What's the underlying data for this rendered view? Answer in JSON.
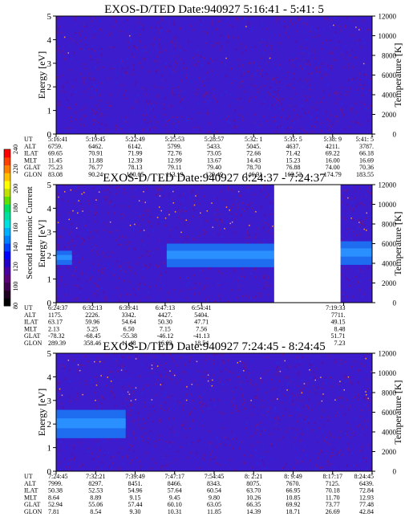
{
  "colorbar": {
    "label": "Second Harmonic Current",
    "ticks": [
      "80",
      "100",
      "120",
      "140",
      "160",
      "180",
      "200",
      "220",
      "240"
    ],
    "colors": [
      "#000000",
      "#200020",
      "#400050",
      "#5a0078",
      "#4a00a0",
      "#2200c8",
      "#0000ff",
      "#0040ff",
      "#0080ff",
      "#00b0ff",
      "#00e0e0",
      "#00e0a0",
      "#00e060",
      "#60e000",
      "#c0e000",
      "#ffff00",
      "#ffc000",
      "#ff8000",
      "#ff4000",
      "#ff0000"
    ]
  },
  "chart_data": [
    {
      "type": "heatmap",
      "title": "EXOS-D/TED   Date:940927  5:16:41 - 5:41: 5",
      "ylabel": "Energy [eV]",
      "y2label": "Temperature [K]",
      "ylim": [
        0,
        5
      ],
      "y2lim": [
        0,
        12000
      ],
      "yticks": [
        "0",
        "1",
        "2",
        "3",
        "4",
        "5"
      ],
      "y2ticks": [
        "0",
        "2000",
        "4000",
        "6000",
        "8000",
        "10000",
        "12000"
      ],
      "gap": null,
      "band": null,
      "table": {
        "labels": [
          "UT",
          "ALT",
          "ILAT",
          "MLT",
          "GLAT",
          "GLON"
        ],
        "columns": [
          [
            "5:16:41",
            "6759.",
            "69.65",
            "11.45",
            "75.23",
            "83.08"
          ],
          [
            "5:19:45",
            "6462.",
            "70.91",
            "11.88",
            "76.77",
            "90.24"
          ],
          [
            "5:22:49",
            "6142.",
            "71.99",
            "12.39",
            "78.13",
            "100.05"
          ],
          [
            "5:25:53",
            "5799.",
            "72.76",
            "12.99",
            "79.11",
            "113.19"
          ],
          [
            "5:28:57",
            "5433.",
            "73.05",
            "13.67",
            "79.40",
            "129.49"
          ],
          [
            "5:32: 1",
            "5045.",
            "72.66",
            "14.43",
            "78.70",
            "146.91"
          ],
          [
            "5:35: 5",
            "4637.",
            "71.42",
            "15.23",
            "76.88",
            "162.52"
          ],
          [
            "5:38: 9",
            "4211.",
            "69.22",
            "16.00",
            "74.00",
            "174.79"
          ],
          [
            "5:41: 5",
            "3787.",
            "66.18",
            "16.69",
            "70.36",
            "183.55"
          ]
        ]
      }
    },
    {
      "type": "heatmap",
      "title": "EXOS-D/TED   Date:940927  6:24:37 - 7:24:37",
      "ylabel": "Energy [eV]",
      "y2label": "Temperature [K]",
      "ylim": [
        0,
        5
      ],
      "y2lim": [
        0,
        12000
      ],
      "yticks": [
        "0",
        "1",
        "2",
        "3",
        "4",
        "5"
      ],
      "y2ticks": [
        "0",
        "2000",
        "4000",
        "6000",
        "8000",
        "10000",
        "12000"
      ],
      "gap": [
        0.69,
        0.9
      ],
      "band": [
        {
          "from": 0.0,
          "to": 0.05,
          "low": 1.6,
          "high": 2.2
        },
        {
          "from": 0.35,
          "to": 0.69,
          "low": 1.5,
          "high": 2.5
        },
        {
          "from": 0.9,
          "to": 1.0,
          "low": 1.6,
          "high": 2.6
        }
      ],
      "table": {
        "labels": [
          "UT",
          "ALT",
          "ILAT",
          "MLT",
          "GLAT",
          "GLON"
        ],
        "columns": [
          [
            "6:24:37",
            "1175.",
            "63.17",
            "2.13",
            "-78.32",
            "289.39"
          ],
          [
            "6:32:13",
            "2226.",
            "59.96",
            "5.25",
            "-68.45",
            "358.46"
          ],
          [
            "6:39:41",
            "3342.",
            "54.64",
            "6.50",
            "-55.38",
            "11.48"
          ],
          [
            "6:47:13",
            "4427.",
            "50.30",
            "7.15",
            "-46.12",
            "16.02"
          ],
          [
            "6:54:41",
            "5404.",
            "47.71",
            "7.56",
            "-41.13",
            "18.54"
          ],
          [
            "7:19:33",
            "7711.",
            "49.15",
            "8.48",
            "51.71",
            "7.23"
          ]
        ]
      }
    },
    {
      "type": "heatmap",
      "title": "EXOS-D/TED   Date:940927  7:24:45 - 8:24:45",
      "ylabel": "Energy [eV]",
      "y2label": "Temperature [K]",
      "ylim": [
        0,
        5
      ],
      "y2lim": [
        0,
        12000
      ],
      "yticks": [
        "0",
        "1",
        "2",
        "3",
        "4",
        "5"
      ],
      "y2ticks": [
        "0",
        "2000",
        "4000",
        "6000",
        "8000",
        "10000",
        "12000"
      ],
      "gap": null,
      "band": [
        {
          "from": 0.0,
          "to": 0.22,
          "low": 1.4,
          "high": 2.6
        }
      ],
      "table": {
        "labels": [
          "UT",
          "ALT",
          "ILAT",
          "MLT",
          "GLAT",
          "GLON"
        ],
        "columns": [
          [
            "7:24:45",
            "7999.",
            "50.38",
            "8.64",
            "52.94",
            "7.81"
          ],
          [
            "7:32:21",
            "8297.",
            "52.53",
            "8.89",
            "55.06",
            "8.54"
          ],
          [
            "7:39:49",
            "8451.",
            "54.96",
            "9.15",
            "57.44",
            "9.30"
          ],
          [
            "7:47:17",
            "8466.",
            "57.64",
            "9.45",
            "60.10",
            "10.31"
          ],
          [
            "7:54:45",
            "8343.",
            "60.54",
            "9.80",
            "63.05",
            "11.85"
          ],
          [
            "8: 2:21",
            "8075.",
            "63.70",
            "10.26",
            "66.35",
            "14.39"
          ],
          [
            "8: 9:49",
            "7670.",
            "66.95",
            "10.85",
            "69.92",
            "18.71"
          ],
          [
            "8:17:17",
            "7125.",
            "70.18",
            "11.70",
            "73.77",
            "26.69"
          ],
          [
            "8:24:45",
            "6439.",
            "72.84",
            "12.93",
            "77.48",
            "42.84"
          ]
        ]
      }
    }
  ]
}
